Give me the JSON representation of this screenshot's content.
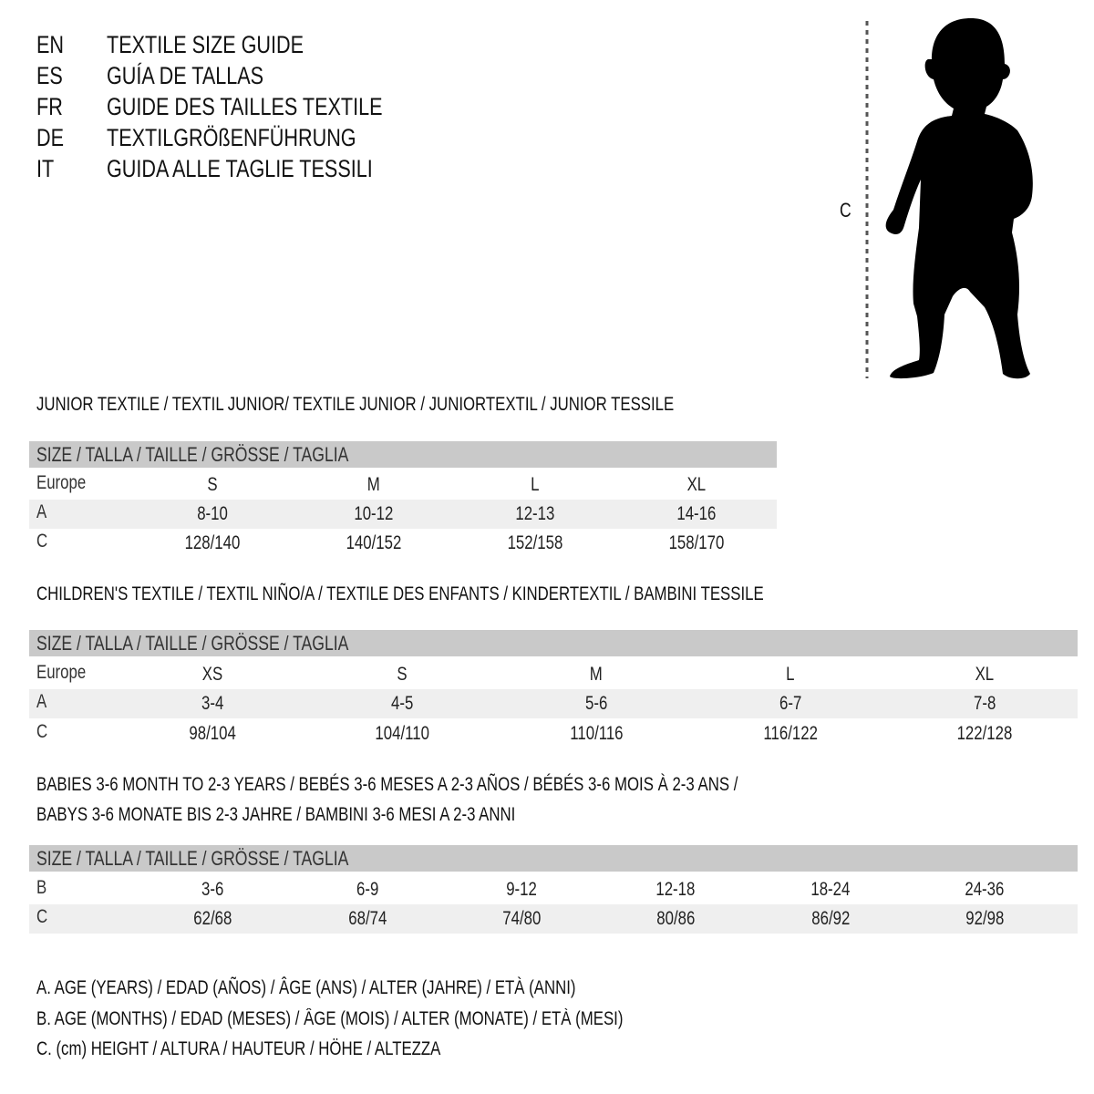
{
  "header": {
    "lines": [
      {
        "code": "EN",
        "text": "TEXTILE SIZE GUIDE"
      },
      {
        "code": "ES",
        "text": "GUÍA DE TALLAS"
      },
      {
        "code": "FR",
        "text": "GUIDE DES TAILLES TEXTILE"
      },
      {
        "code": "DE",
        "text": "TEXTILGRÖßENFÜHRUNG"
      },
      {
        "code": "IT",
        "text": "GUIDA ALLE TAGLIE TESSILI"
      }
    ]
  },
  "figure": {
    "height_label": "C",
    "icon": "child-silhouette"
  },
  "colors": {
    "header_bar": "#c9c9c9",
    "alt_row": "#efefef"
  },
  "sections": [
    {
      "title": [
        "JUNIOR TEXTILE / TEXTIL JUNIOR/ TEXTILE JUNIOR / JUNIORTEXTIL / JUNIOR TESSILE"
      ],
      "size_header": "SIZE / TALLA / TAILLE / GRÖSSE / TAGLIA",
      "rows": [
        {
          "label": "Europe",
          "values": [
            "S",
            "M",
            "L",
            "XL"
          ]
        },
        {
          "label": "A",
          "values": [
            "8-10",
            "10-12",
            "12-13",
            "14-16"
          ]
        },
        {
          "label": "C",
          "values": [
            "128/140",
            "140/152",
            "152/158",
            "158/170"
          ]
        }
      ]
    },
    {
      "title": [
        "CHILDREN'S TEXTILE / TEXTIL NIÑO/A / TEXTILE DES ENFANTS / KINDERTEXTIL / BAMBINI TESSILE"
      ],
      "size_header": "SIZE / TALLA / TAILLE / GRÖSSE / TAGLIA",
      "rows": [
        {
          "label": "Europe",
          "values": [
            "XS",
            "S",
            "M",
            "L",
            "XL"
          ]
        },
        {
          "label": "A",
          "values": [
            "3-4",
            "4-5",
            "5-6",
            "6-7",
            "7-8"
          ]
        },
        {
          "label": "C",
          "values": [
            "98/104",
            "104/110",
            "110/116",
            "116/122",
            "122/128"
          ]
        }
      ]
    },
    {
      "title": [
        "BABIES 3-6 MONTH TO 2-3 YEARS / BEBÉS 3-6 MESES A 2-3 AÑOS / BÉBÉS 3-6 MOIS À 2-3 ANS /",
        "BABYS 3-6 MONATE BIS 2-3 JAHRE / BAMBINI 3-6 MESI A 2-3 ANNI"
      ],
      "size_header": "SIZE / TALLA / TAILLE / GRÖSSE / TAGLIA",
      "rows": [
        {
          "label": "B",
          "values": [
            "3-6",
            "6-9",
            "9-12",
            "12-18",
            "18-24",
            "24-36"
          ]
        },
        {
          "label": "C",
          "values": [
            "62/68",
            "68/74",
            "74/80",
            "80/86",
            "86/92",
            "92/98"
          ]
        }
      ]
    }
  ],
  "legend": [
    "A. AGE (YEARS) / EDAD (AÑOS) / ÂGE (ANS) / ALTER (JAHRE) / ETÀ (ANNI)",
    "B. AGE (MONTHS) / EDAD (MESES) / ÂGE (MOIS) / ALTER (MONATE) / ETÀ (MESI)",
    "C. (cm) HEIGHT / ALTURA / HAUTEUR / HÖHE / ALTEZZA"
  ]
}
